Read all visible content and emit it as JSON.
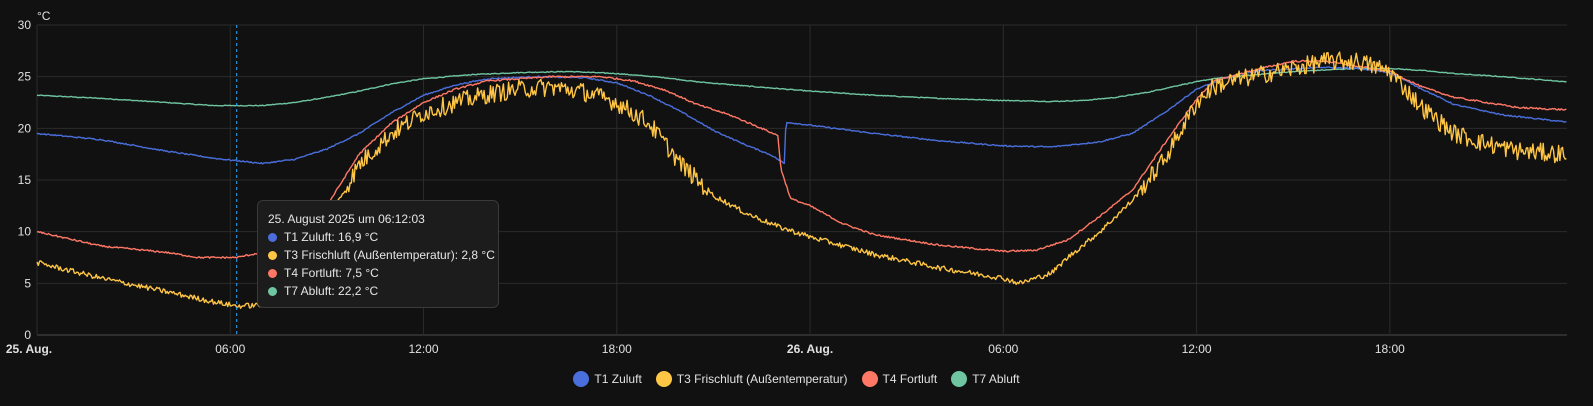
{
  "chart_data": {
    "type": "line",
    "title": "",
    "xlabel": "",
    "ylabel": "°C",
    "ylim": [
      0,
      30
    ],
    "yticks": [
      0,
      5,
      10,
      15,
      20,
      25,
      30
    ],
    "xlim_hours": [
      0,
      47.5
    ],
    "xticks": [
      {
        "h": 0,
        "label": "25. Aug.",
        "bold": true
      },
      {
        "h": 6,
        "label": "06:00",
        "bold": false
      },
      {
        "h": 12,
        "label": "12:00",
        "bold": false
      },
      {
        "h": 18,
        "label": "18:00",
        "bold": false
      },
      {
        "h": 24,
        "label": "26. Aug.",
        "bold": true
      },
      {
        "h": 30,
        "label": "06:00",
        "bold": false
      },
      {
        "h": 36,
        "label": "12:00",
        "bold": false
      },
      {
        "h": 42,
        "label": "18:00",
        "bold": false
      }
    ],
    "grid": true,
    "legend_position": "bottom",
    "cursor_hour": 6.2,
    "series": [
      {
        "name": "T1 Zuluft",
        "color": "#4a6fdc",
        "noise": 0.06,
        "points": [
          [
            0,
            19.5
          ],
          [
            2,
            18.9
          ],
          [
            4,
            17.8
          ],
          [
            5.5,
            17.1
          ],
          [
            7,
            16.6
          ],
          [
            8,
            17.0
          ],
          [
            9,
            18.0
          ],
          [
            10,
            19.5
          ],
          [
            11,
            21.5
          ],
          [
            12,
            23.2
          ],
          [
            13,
            24.2
          ],
          [
            14,
            24.8
          ],
          [
            15.5,
            25.0
          ],
          [
            17,
            24.9
          ],
          [
            18,
            24.4
          ],
          [
            19,
            23.2
          ],
          [
            20,
            21.6
          ],
          [
            21,
            19.8
          ],
          [
            22,
            18.4
          ],
          [
            22.8,
            17.4
          ],
          [
            23.2,
            16.6
          ],
          [
            23.25,
            20.6
          ],
          [
            24,
            20.3
          ],
          [
            26,
            19.5
          ],
          [
            28,
            18.8
          ],
          [
            30,
            18.3
          ],
          [
            31.5,
            18.2
          ],
          [
            33,
            18.7
          ],
          [
            34,
            19.5
          ],
          [
            35,
            21.5
          ],
          [
            36,
            23.8
          ],
          [
            37,
            25.0
          ],
          [
            38,
            25.6
          ],
          [
            40,
            25.9
          ],
          [
            41,
            25.8
          ],
          [
            42,
            25.4
          ],
          [
            43,
            23.8
          ],
          [
            44,
            22.3
          ],
          [
            45.5,
            21.3
          ],
          [
            47.5,
            20.6
          ]
        ]
      },
      {
        "name": "T3 Frischluft (Außentemperatur)",
        "color": "#ffc544",
        "noise": 0.25,
        "points": [
          [
            0,
            7.0
          ],
          [
            2,
            5.5
          ],
          [
            4,
            4.2
          ],
          [
            5.5,
            3.2
          ],
          [
            6.2,
            2.8
          ],
          [
            7,
            2.9
          ],
          [
            8,
            5.5
          ],
          [
            9,
            11.0
          ],
          [
            10,
            16.5
          ],
          [
            11,
            19.5
          ],
          [
            12,
            21.5
          ],
          [
            13,
            22.5
          ],
          [
            14,
            23.3
          ],
          [
            15,
            23.8
          ],
          [
            16,
            24.0
          ],
          [
            17,
            23.5
          ],
          [
            18,
            22.5
          ],
          [
            19,
            20.5
          ],
          [
            20,
            16.5
          ],
          [
            21,
            13.5
          ],
          [
            22,
            11.8
          ],
          [
            23,
            10.5
          ],
          [
            24,
            9.5
          ],
          [
            26,
            7.8
          ],
          [
            28,
            6.5
          ],
          [
            30,
            5.5
          ],
          [
            30.5,
            5.0
          ],
          [
            31.5,
            6.0
          ],
          [
            32,
            7.5
          ],
          [
            33,
            10.0
          ],
          [
            34,
            13.0
          ],
          [
            35,
            17.0
          ],
          [
            36,
            22.5
          ],
          [
            36.5,
            24.0
          ],
          [
            37,
            24.5
          ],
          [
            38,
            25.2
          ],
          [
            39,
            25.8
          ],
          [
            40,
            26.5
          ],
          [
            41,
            26.5
          ],
          [
            42,
            25.5
          ],
          [
            43,
            22.0
          ],
          [
            44,
            19.5
          ],
          [
            45,
            18.5
          ],
          [
            46,
            17.8
          ],
          [
            47.5,
            17.5
          ]
        ]
      },
      {
        "name": "T4 Fortluft",
        "color": "#ff7866",
        "noise": 0.08,
        "points": [
          [
            0,
            10.0
          ],
          [
            2,
            8.6
          ],
          [
            4,
            8.0
          ],
          [
            5,
            7.5
          ],
          [
            6.2,
            7.5
          ],
          [
            7,
            8.0
          ],
          [
            8,
            9.3
          ],
          [
            9,
            12.5
          ],
          [
            10,
            17.5
          ],
          [
            11,
            20.5
          ],
          [
            12,
            22.5
          ],
          [
            13,
            23.8
          ],
          [
            14,
            24.6
          ],
          [
            16,
            25.0
          ],
          [
            17.5,
            25.0
          ],
          [
            18.5,
            24.6
          ],
          [
            19.5,
            23.7
          ],
          [
            20.5,
            22.3
          ],
          [
            21.5,
            21.3
          ],
          [
            22.5,
            20.0
          ],
          [
            23.0,
            19.3
          ],
          [
            23.1,
            16.0
          ],
          [
            23.4,
            13.2
          ],
          [
            24,
            12.5
          ],
          [
            25,
            10.8
          ],
          [
            26,
            9.7
          ],
          [
            28,
            8.7
          ],
          [
            30,
            8.1
          ],
          [
            31,
            8.2
          ],
          [
            32,
            9.2
          ],
          [
            33,
            11.5
          ],
          [
            34,
            14.0
          ],
          [
            35,
            18.5
          ],
          [
            36,
            22.8
          ],
          [
            36.5,
            24.5
          ],
          [
            37,
            25.0
          ],
          [
            38,
            25.8
          ],
          [
            39,
            26.5
          ],
          [
            40,
            26.5
          ],
          [
            41,
            26.0
          ],
          [
            42,
            25.5
          ],
          [
            43,
            24.0
          ],
          [
            44,
            23.0
          ],
          [
            45,
            22.5
          ],
          [
            46,
            22.0
          ],
          [
            47.5,
            21.8
          ]
        ]
      },
      {
        "name": "T7 Abluft",
        "color": "#6fc5a2",
        "noise": 0.04,
        "points": [
          [
            0,
            23.2
          ],
          [
            2,
            22.9
          ],
          [
            4,
            22.5
          ],
          [
            5.5,
            22.2
          ],
          [
            7,
            22.2
          ],
          [
            8,
            22.5
          ],
          [
            9,
            23.0
          ],
          [
            10,
            23.6
          ],
          [
            11,
            24.3
          ],
          [
            12,
            24.8
          ],
          [
            13.5,
            25.2
          ],
          [
            15,
            25.4
          ],
          [
            16.5,
            25.5
          ],
          [
            18,
            25.3
          ],
          [
            19.5,
            24.9
          ],
          [
            20.5,
            24.5
          ],
          [
            22,
            24.1
          ],
          [
            24,
            23.6
          ],
          [
            26,
            23.2
          ],
          [
            28,
            22.9
          ],
          [
            30,
            22.7
          ],
          [
            31.5,
            22.6
          ],
          [
            32.5,
            22.7
          ],
          [
            33.5,
            23.0
          ],
          [
            34.5,
            23.5
          ],
          [
            35.5,
            24.2
          ],
          [
            36.5,
            24.8
          ],
          [
            37.5,
            25.1
          ],
          [
            39,
            25.5
          ],
          [
            41,
            25.8
          ],
          [
            42,
            25.8
          ],
          [
            43,
            25.6
          ],
          [
            44,
            25.3
          ],
          [
            45.5,
            25.0
          ],
          [
            47.5,
            24.5
          ]
        ]
      }
    ]
  },
  "tooltip": {
    "time": "25. August 2025 um 06:12:03",
    "rows": [
      {
        "label": "T1 Zuluft: 16,9 °C",
        "color": "#4a6fdc"
      },
      {
        "label": "T3 Frischluft (Außentemperatur): 2,8 °C",
        "color": "#ffc544"
      },
      {
        "label": "T4 Fortluft: 7,5 °C",
        "color": "#ff7866"
      },
      {
        "label": "T7 Abluft: 22,2 °C",
        "color": "#6fc5a2"
      }
    ]
  },
  "legend": {
    "items": [
      {
        "label": "T1 Zuluft",
        "color": "#4a6fdc"
      },
      {
        "label": "T3 Frischluft (Außentemperatur)",
        "color": "#ffc544"
      },
      {
        "label": "T4 Fortluft",
        "color": "#ff7866"
      },
      {
        "label": "T7 Abluft",
        "color": "#6fc5a2"
      }
    ]
  }
}
